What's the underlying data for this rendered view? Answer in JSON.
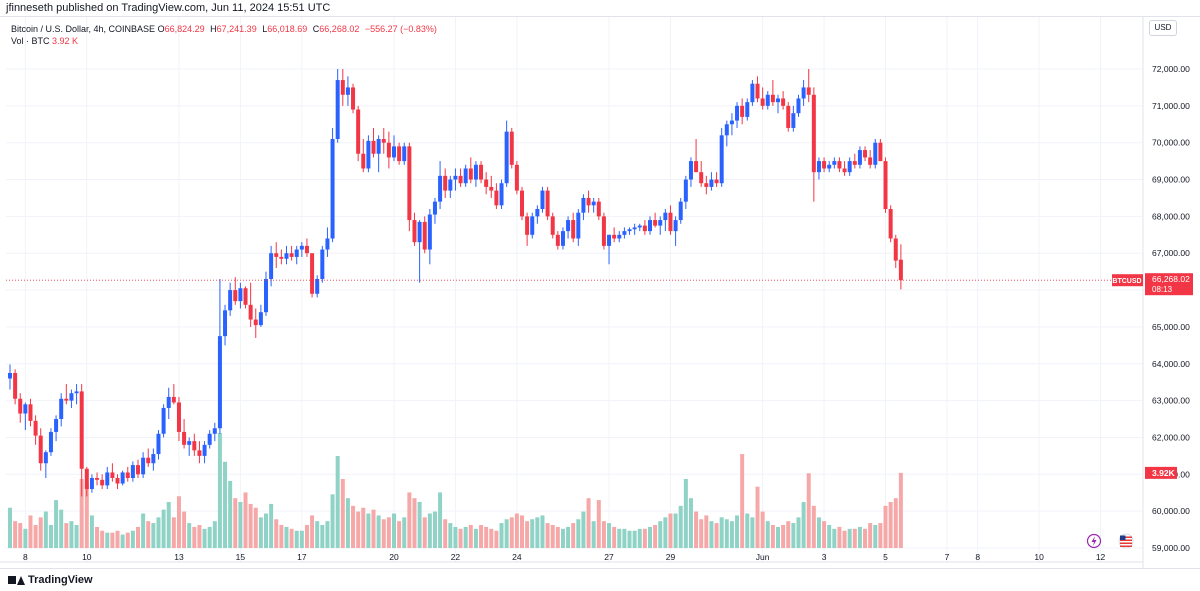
{
  "header": {
    "publisher": "jfinneseth published on TradingView.com, Jun 11, 2024 15:51 UTC"
  },
  "legend": {
    "symbol": "Bitcoin / U.S. Dollar, 4h, COINBASE",
    "o_label": "O",
    "o_value": "66,824.29",
    "h_label": "H",
    "h_value": "67,241.39",
    "l_label": "L",
    "l_value": "66,018.69",
    "c_label": "C",
    "c_value": "66,268.02",
    "change": "−556.27 (−0.83%)",
    "vol_label": "Vol · BTC",
    "vol_value": "3.92 K"
  },
  "currency_button": "USD",
  "price_badge": {
    "symbol": "BTCUSD",
    "price": "66,268.02",
    "countdown": "08:13",
    "color": "#f23645"
  },
  "volume_badge": {
    "value": "3.92K",
    "color": "#f23645"
  },
  "footer": {
    "brand": "TradingView"
  },
  "icons": {
    "flash": "flash-icon",
    "flag": "us-flag-icon",
    "logo": "tradingview-logo-icon"
  },
  "colors": {
    "up": "#2962ff",
    "down": "#f23645",
    "vol_up": "#8fd3c6",
    "vol_down": "#f6a8a8",
    "grid": "#f0f3fa",
    "axis_text": "#131722"
  },
  "chart_data": {
    "type": "candlestick",
    "interval": "4h",
    "ylim": [
      59000,
      72300
    ],
    "y_ticks": [
      "72,000.00",
      "71,000.00",
      "70,000.00",
      "69,000.00",
      "68,000.00",
      "67,000.00",
      "66,000.00",
      "65,000.00",
      "64,000.00",
      "63,000.00",
      "62,000.00",
      "61,000.00",
      "60,000.00",
      "59,000.00"
    ],
    "y_tick_values": [
      72000,
      71000,
      70000,
      69000,
      68000,
      67000,
      66000,
      65000,
      64000,
      63000,
      62000,
      61000,
      60000,
      59000
    ],
    "x_labels": [
      {
        "label": "8",
        "index": 3
      },
      {
        "label": "10",
        "index": 15
      },
      {
        "label": "13",
        "index": 33
      },
      {
        "label": "15",
        "index": 45
      },
      {
        "label": "17",
        "index": 57
      },
      {
        "label": "20",
        "index": 75
      },
      {
        "label": "22",
        "index": 87
      },
      {
        "label": "24",
        "index": 99
      },
      {
        "label": "27",
        "index": 117
      },
      {
        "label": "29",
        "index": 129
      },
      {
        "label": "Jun",
        "index": 147
      },
      {
        "label": "3",
        "index": 159
      },
      {
        "label": "5",
        "index": 171
      },
      {
        "label": "7",
        "index": 183
      },
      {
        "label": "8",
        "index": 189
      },
      {
        "label": "10",
        "index": 201
      },
      {
        "label": "12",
        "index": 213
      }
    ],
    "last_price": 66268.02,
    "candles": [
      [
        63600,
        63980,
        63300,
        63750,
        2.1
      ],
      [
        63750,
        63850,
        62900,
        63050,
        1.4
      ],
      [
        63050,
        63200,
        62400,
        62650,
        1.3
      ],
      [
        62650,
        62950,
        62200,
        62900,
        1.0
      ],
      [
        62900,
        63050,
        62300,
        62450,
        1.7
      ],
      [
        62450,
        62600,
        61800,
        62050,
        1.2
      ],
      [
        62050,
        62250,
        61100,
        61300,
        1.6
      ],
      [
        61300,
        61650,
        60900,
        61600,
        1.9
      ],
      [
        61600,
        62250,
        61500,
        62150,
        1.2
      ],
      [
        62150,
        62600,
        61900,
        62500,
        2.5
      ],
      [
        62500,
        63200,
        62300,
        63050,
        2.0
      ],
      [
        63050,
        63450,
        62900,
        63000,
        1.3
      ],
      [
        63000,
        63300,
        62800,
        63200,
        1.4
      ],
      [
        63200,
        63450,
        62900,
        63250,
        1.2
      ],
      [
        63250,
        63450,
        60400,
        61150,
        3.6
      ],
      [
        61150,
        61200,
        60400,
        60600,
        3.3
      ],
      [
        60600,
        61000,
        60500,
        60900,
        1.7
      ],
      [
        60900,
        61050,
        60700,
        60850,
        1.1
      ],
      [
        60850,
        61000,
        60600,
        60700,
        0.9
      ],
      [
        60700,
        61200,
        60600,
        61050,
        0.8
      ],
      [
        61050,
        61300,
        60800,
        60900,
        0.8
      ],
      [
        60900,
        61000,
        60600,
        60750,
        0.9
      ],
      [
        60750,
        61100,
        60700,
        61050,
        0.7
      ],
      [
        61050,
        61200,
        60800,
        60900,
        0.8
      ],
      [
        60900,
        61350,
        60800,
        61250,
        0.9
      ],
      [
        61250,
        61400,
        60900,
        61000,
        1.1
      ],
      [
        61000,
        61600,
        60900,
        61450,
        1.8
      ],
      [
        61450,
        61700,
        61200,
        61300,
        1.4
      ],
      [
        61300,
        61700,
        61100,
        61550,
        1.3
      ],
      [
        61550,
        62200,
        61400,
        62100,
        1.6
      ],
      [
        62100,
        62900,
        62000,
        62800,
        2.0
      ],
      [
        62800,
        63350,
        62500,
        63100,
        2.4
      ],
      [
        63100,
        63450,
        62900,
        62950,
        1.6
      ],
      [
        62950,
        63100,
        61900,
        62150,
        2.7
      ],
      [
        62150,
        62500,
        61700,
        61800,
        1.9
      ],
      [
        61800,
        62000,
        61500,
        61900,
        1.3
      ],
      [
        61900,
        62100,
        61500,
        61650,
        1.1
      ],
      [
        61650,
        61900,
        61300,
        61500,
        1.2
      ],
      [
        61500,
        61900,
        61300,
        61800,
        1.0
      ],
      [
        61800,
        62200,
        61700,
        62100,
        1.1
      ],
      [
        62100,
        62400,
        61900,
        62250,
        1.4
      ],
      [
        62250,
        66300,
        62100,
        64750,
        6.0
      ],
      [
        64750,
        65600,
        64500,
        65450,
        4.5
      ],
      [
        65450,
        66200,
        65300,
        66000,
        3.5
      ],
      [
        66000,
        66350,
        65600,
        65700,
        2.6
      ],
      [
        65700,
        66200,
        65500,
        66050,
        2.4
      ],
      [
        66050,
        66100,
        65500,
        65600,
        2.9
      ],
      [
        65600,
        66200,
        65000,
        65200,
        2.3
      ],
      [
        65200,
        65500,
        64700,
        65050,
        2.1
      ],
      [
        65050,
        65600,
        65000,
        65400,
        1.6
      ],
      [
        65400,
        66500,
        65300,
        66300,
        1.8
      ],
      [
        66300,
        67200,
        66100,
        67000,
        2.3
      ],
      [
        67000,
        67300,
        66600,
        66900,
        1.5
      ],
      [
        66900,
        67100,
        66700,
        66850,
        1.2
      ],
      [
        66850,
        67200,
        66700,
        67000,
        1.1
      ],
      [
        67000,
        67200,
        66800,
        66900,
        1.0
      ],
      [
        66900,
        67200,
        66700,
        67100,
        0.9
      ],
      [
        67100,
        67300,
        66900,
        67200,
        0.9
      ],
      [
        67200,
        67400,
        66900,
        67000,
        1.2
      ],
      [
        67000,
        66900,
        65800,
        65900,
        1.7
      ],
      [
        65900,
        66400,
        65800,
        66300,
        1.4
      ],
      [
        66300,
        67200,
        66200,
        67100,
        1.2
      ],
      [
        67100,
        67700,
        66900,
        67400,
        1.4
      ],
      [
        67400,
        70400,
        67300,
        70100,
        2.8
      ],
      [
        70100,
        72000,
        70000,
        71700,
        4.8
      ],
      [
        71700,
        72000,
        71000,
        71300,
        3.6
      ],
      [
        71300,
        71800,
        71000,
        71500,
        2.6
      ],
      [
        71500,
        71600,
        70800,
        70900,
        2.2
      ],
      [
        70900,
        71000,
        69500,
        69700,
        1.9
      ],
      [
        69700,
        70100,
        69200,
        69300,
        2.1
      ],
      [
        69300,
        70200,
        69200,
        70050,
        1.8
      ],
      [
        70050,
        70400,
        69600,
        69700,
        2.0
      ],
      [
        69700,
        70200,
        69200,
        70100,
        1.7
      ],
      [
        70100,
        70400,
        69700,
        70000,
        1.5
      ],
      [
        70000,
        70300,
        69300,
        69600,
        1.6
      ],
      [
        69600,
        70200,
        69500,
        69900,
        1.8
      ],
      [
        69900,
        70000,
        69400,
        69500,
        1.4
      ],
      [
        69500,
        70000,
        69400,
        69900,
        1.6
      ],
      [
        69900,
        70000,
        67600,
        67900,
        2.9
      ],
      [
        67900,
        68100,
        67200,
        67300,
        2.6
      ],
      [
        67300,
        67900,
        66200,
        67850,
        2.4
      ],
      [
        67850,
        68000,
        67000,
        67100,
        1.6
      ],
      [
        67100,
        68200,
        66700,
        68050,
        1.8
      ],
      [
        68050,
        68500,
        67800,
        68400,
        1.9
      ],
      [
        68400,
        69500,
        68200,
        69100,
        2.9
      ],
      [
        69100,
        69300,
        68500,
        68700,
        1.5
      ],
      [
        68700,
        69100,
        68500,
        69000,
        1.3
      ],
      [
        69000,
        69300,
        68700,
        69100,
        1.1
      ],
      [
        69100,
        69300,
        68800,
        68900,
        1.0
      ],
      [
        68900,
        69400,
        68800,
        69300,
        1.1
      ],
      [
        69300,
        69600,
        68900,
        69000,
        1.2
      ],
      [
        69000,
        69500,
        68800,
        69400,
        1.0
      ],
      [
        69400,
        69500,
        68900,
        69000,
        1.2
      ],
      [
        69000,
        69200,
        68600,
        68800,
        1.1
      ],
      [
        68800,
        69100,
        68500,
        68700,
        1.0
      ],
      [
        68700,
        68900,
        68200,
        68300,
        0.9
      ],
      [
        68300,
        69000,
        68200,
        68900,
        1.3
      ],
      [
        68900,
        70600,
        68800,
        70300,
        1.5
      ],
      [
        70300,
        70400,
        69300,
        69400,
        1.6
      ],
      [
        69400,
        69500,
        68600,
        68700,
        1.8
      ],
      [
        68700,
        68800,
        67900,
        68000,
        1.7
      ],
      [
        68000,
        68100,
        67200,
        67500,
        1.4
      ],
      [
        67500,
        68100,
        67400,
        68000,
        1.5
      ],
      [
        68000,
        68300,
        67800,
        68200,
        1.6
      ],
      [
        68200,
        68800,
        68100,
        68700,
        1.7
      ],
      [
        68700,
        68800,
        67900,
        68000,
        1.3
      ],
      [
        68000,
        68100,
        67400,
        67500,
        1.2
      ],
      [
        67500,
        67600,
        67100,
        67200,
        1.1
      ],
      [
        67200,
        67700,
        67100,
        67600,
        1.0
      ],
      [
        67600,
        68000,
        67400,
        67900,
        1.1
      ],
      [
        67900,
        68100,
        67300,
        67400,
        1.3
      ],
      [
        67400,
        68200,
        67200,
        68100,
        1.5
      ],
      [
        68100,
        68600,
        67900,
        68500,
        1.9
      ],
      [
        68500,
        68700,
        68100,
        68300,
        2.6
      ],
      [
        68300,
        68500,
        68100,
        68400,
        1.4
      ],
      [
        68400,
        68500,
        67900,
        68000,
        2.5
      ],
      [
        68000,
        68100,
        67100,
        67200,
        1.4
      ],
      [
        67200,
        67500,
        66700,
        67500,
        1.3
      ],
      [
        67500,
        67700,
        67300,
        67400,
        1.1
      ],
      [
        67400,
        67600,
        67300,
        67500,
        1.0
      ],
      [
        67500,
        67700,
        67400,
        67600,
        1.0
      ],
      [
        67600,
        67700,
        67500,
        67650,
        0.9
      ],
      [
        67650,
        67800,
        67500,
        67700,
        0.9
      ],
      [
        67700,
        67800,
        67600,
        67750,
        1.0
      ],
      [
        67750,
        67900,
        67500,
        67600,
        1.0
      ],
      [
        67600,
        68000,
        67500,
        67900,
        1.1
      ],
      [
        67900,
        68100,
        67700,
        67750,
        1.2
      ],
      [
        67750,
        68000,
        67500,
        67900,
        1.4
      ],
      [
        67900,
        68200,
        67600,
        68100,
        1.6
      ],
      [
        68100,
        68300,
        67500,
        67600,
        1.8
      ],
      [
        67600,
        68000,
        67200,
        67900,
        1.8
      ],
      [
        67900,
        68500,
        67800,
        68400,
        2.2
      ],
      [
        68400,
        69100,
        68200,
        69000,
        3.6
      ],
      [
        69000,
        69600,
        68800,
        69500,
        2.6
      ],
      [
        69500,
        70100,
        69200,
        69200,
        1.9
      ],
      [
        69200,
        69500,
        68800,
        68900,
        1.5
      ],
      [
        68900,
        69100,
        68600,
        68800,
        1.7
      ],
      [
        68800,
        69200,
        68700,
        69000,
        1.4
      ],
      [
        69000,
        69200,
        68800,
        68900,
        1.3
      ],
      [
        68900,
        70400,
        68800,
        70200,
        1.6
      ],
      [
        70200,
        70600,
        69900,
        70500,
        1.5
      ],
      [
        70500,
        70800,
        70200,
        70600,
        1.4
      ],
      [
        70600,
        71100,
        70400,
        71000,
        1.7
      ],
      [
        71000,
        71200,
        70500,
        70700,
        4.9
      ],
      [
        70700,
        71200,
        70600,
        71100,
        1.8
      ],
      [
        71100,
        71700,
        71000,
        71600,
        1.6
      ],
      [
        71600,
        71800,
        71100,
        71200,
        3.2
      ],
      [
        71200,
        71500,
        70900,
        71000,
        1.9
      ],
      [
        71000,
        71400,
        70900,
        71300,
        1.4
      ],
      [
        71300,
        71700,
        71000,
        71100,
        1.2
      ],
      [
        71100,
        71300,
        70800,
        71200,
        1.1
      ],
      [
        71200,
        71400,
        70900,
        71000,
        1.2
      ],
      [
        71000,
        71100,
        70300,
        70400,
        1.4
      ],
      [
        70400,
        71000,
        70300,
        70800,
        1.3
      ],
      [
        70800,
        71300,
        70700,
        71200,
        1.6
      ],
      [
        71200,
        71700,
        71000,
        71500,
        2.4
      ],
      [
        71500,
        72000,
        71100,
        71300,
        3.9
      ],
      [
        71300,
        71500,
        68400,
        69200,
        2.2
      ],
      [
        69200,
        69600,
        69000,
        69500,
        1.6
      ],
      [
        69500,
        69600,
        69200,
        69300,
        1.4
      ],
      [
        69300,
        69500,
        69200,
        69400,
        1.2
      ],
      [
        69400,
        69600,
        69300,
        69500,
        1.0
      ],
      [
        69500,
        69600,
        69200,
        69300,
        1.1
      ],
      [
        69300,
        69500,
        69100,
        69200,
        0.9
      ],
      [
        69200,
        69600,
        69100,
        69500,
        1.0
      ],
      [
        69500,
        69700,
        69300,
        69400,
        1.0
      ],
      [
        69400,
        69900,
        69300,
        69800,
        1.1
      ],
      [
        69800,
        69900,
        69500,
        69600,
        1.0
      ],
      [
        69600,
        69800,
        69300,
        69400,
        1.3
      ],
      [
        69400,
        70100,
        69300,
        70000,
        1.2
      ],
      [
        70000,
        70100,
        69500,
        69500,
        1.3
      ],
      [
        69500,
        69600,
        68100,
        68200,
        2.2
      ],
      [
        68200,
        68300,
        67300,
        67400,
        2.4
      ],
      [
        67400,
        67500,
        66600,
        66800,
        2.6
      ],
      [
        66824,
        67241,
        66018,
        66268,
        3.92
      ]
    ]
  }
}
